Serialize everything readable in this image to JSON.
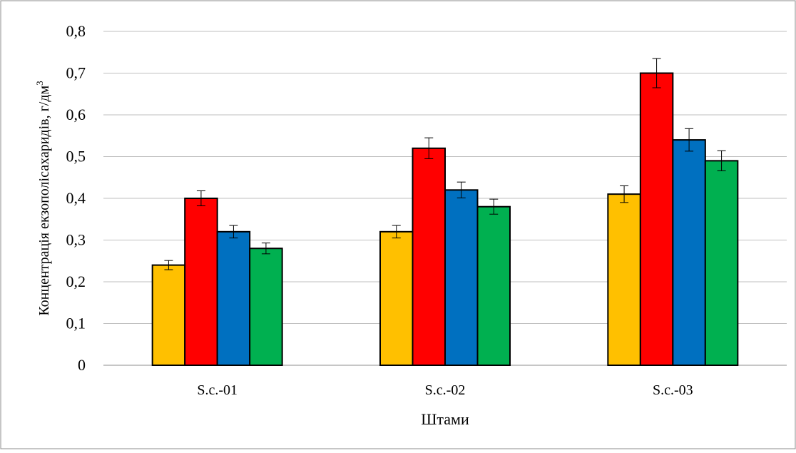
{
  "chart_data": {
    "type": "bar",
    "categories": [
      "S.c.-01",
      "S.c.-02",
      "S.c.-03"
    ],
    "series": [
      {
        "values": [
          0.24,
          0.32,
          0.41
        ],
        "errors": [
          0.011,
          0.015,
          0.02
        ],
        "color": "#FFC000"
      },
      {
        "values": [
          0.4,
          0.52,
          0.7
        ],
        "errors": [
          0.018,
          0.025,
          0.035
        ],
        "color": "#FF0000"
      },
      {
        "values": [
          0.32,
          0.42,
          0.54
        ],
        "errors": [
          0.015,
          0.019,
          0.027
        ],
        "color": "#0070C0"
      },
      {
        "values": [
          0.28,
          0.38,
          0.49
        ],
        "errors": [
          0.013,
          0.018,
          0.024
        ],
        "color": "#00B050"
      }
    ],
    "xlabel": "Штами",
    "ylabel": "Концентрація екзополісахаридів, г/дм",
    "ylabel_superscript": "3",
    "ylim": [
      0,
      0.8
    ],
    "yticks": [
      "0",
      "0,1",
      "0,2",
      "0,3",
      "0,4",
      "0,5",
      "0,6",
      "0,7",
      "0,8"
    ],
    "grid": true,
    "legend": "none",
    "error_bars": true
  }
}
